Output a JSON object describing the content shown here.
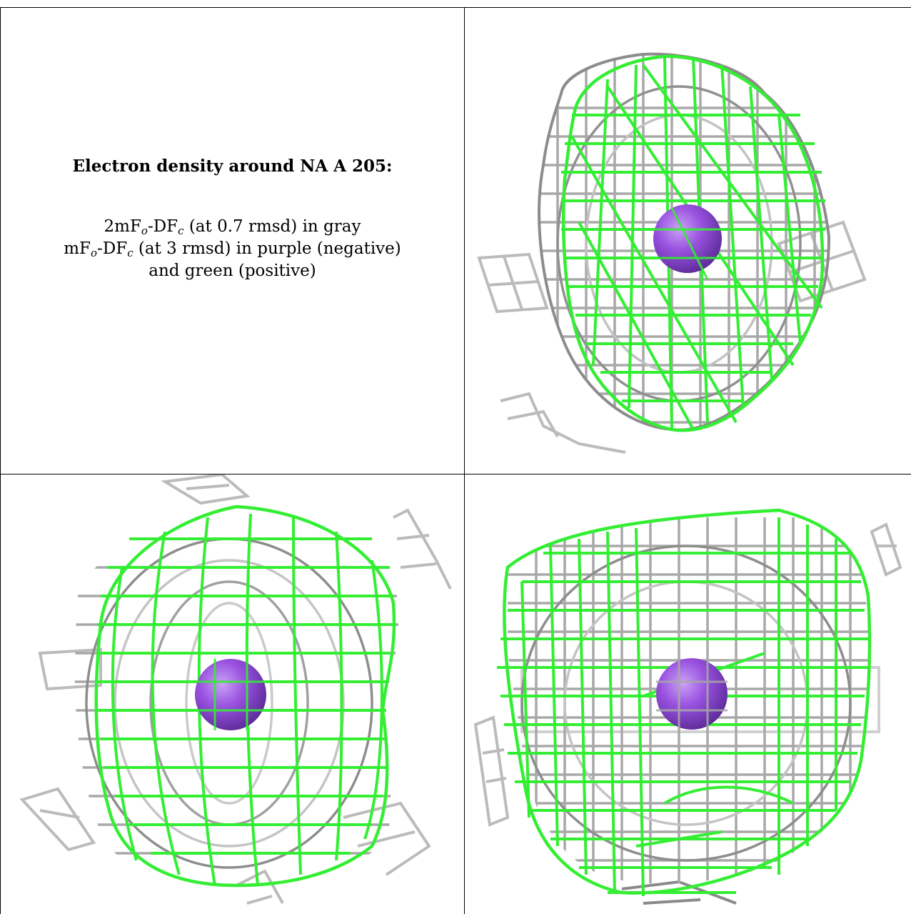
{
  "legend": {
    "title": "Electron density around NA A 205:",
    "line1": {
      "a_pre": "2mF",
      "a_sub": "o",
      "b_pre": "-DF",
      "b_sub": "c",
      "rest": " (at 0.7 rmsd) in gray"
    },
    "line2": {
      "a_pre": "mF",
      "a_sub": "o",
      "b_pre": "-DF",
      "b_sub": "c",
      "rest": " (at 3 rmsd) in purple (negative)"
    },
    "line3": "and green (positive)"
  },
  "colors": {
    "positive_mesh": "#33ee33",
    "mesh_2fofc": "#b0b0b0",
    "mesh_2fofc_dark": "#777777",
    "atom_sodium": "#9a52e0",
    "rule": "#000000"
  },
  "views": [
    {
      "label": "view-top-right",
      "atom": "NA A 205"
    },
    {
      "label": "view-bottom-left",
      "atom": "NA A 205"
    },
    {
      "label": "view-bottom-right",
      "atom": "NA A 205"
    }
  ]
}
